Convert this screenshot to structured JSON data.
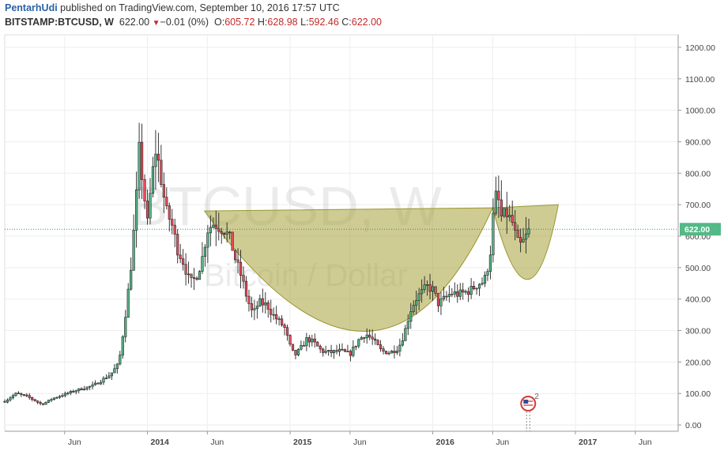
{
  "header": {
    "author": "PentarhUdi",
    "published_text": "published on TradingView.com, September 10, 2016 17:57 UTC",
    "symbol": "BITSTAMP:BTCUSD, W",
    "last": "622.00",
    "change_arrow": "▼",
    "change": "−0.01 (0%)",
    "o_label": "O:",
    "o_value": "605.72",
    "h_label": "H:",
    "h_value": "628.98",
    "l_label": "L:",
    "l_value": "592.46",
    "c_label": "C:",
    "c_value": "622.00"
  },
  "watermark": {
    "title": "BTCUSD, W",
    "subtitle": "Bitcoin / Dollar"
  },
  "price_tag": "622.00",
  "event_badge": "2",
  "colors": {
    "up": "#53b987",
    "down": "#eb4d5c",
    "pattern_fill": "#a7a23a",
    "price_line": "#2a8f8f",
    "grid": "#eeeeee",
    "axis": "#999999",
    "price_tag_bg": "#53b987"
  },
  "chart_data": {
    "type": "candlestick",
    "title": "",
    "ylim": [
      -20,
      1240
    ],
    "y_ticks": [
      "0.00",
      "100.00",
      "200.00",
      "300.00",
      "400.00",
      "500.00",
      "600.00",
      "700.00",
      "800.00",
      "900.00",
      "1000.00",
      "1100.00",
      "1200.00"
    ],
    "x_ticks": [
      {
        "t": 2013.42,
        "label": "Jun"
      },
      {
        "t": 2014.0,
        "label": "2014"
      },
      {
        "t": 2014.42,
        "label": "Jun"
      },
      {
        "t": 2015.0,
        "label": "2015"
      },
      {
        "t": 2015.42,
        "label": "Jun"
      },
      {
        "t": 2016.0,
        "label": "2016"
      },
      {
        "t": 2016.42,
        "label": "Jun"
      },
      {
        "t": 2017.0,
        "label": "2017"
      },
      {
        "t": 2017.42,
        "label": "Jun"
      }
    ],
    "xlim": [
      2013.0,
      2017.72
    ],
    "last_price": 622,
    "keypoints": [
      {
        "t": 2013.0,
        "p": 75
      },
      {
        "t": 2013.08,
        "p": 100
      },
      {
        "t": 2013.16,
        "p": 90
      },
      {
        "t": 2013.26,
        "p": 65
      },
      {
        "t": 2013.34,
        "p": 85
      },
      {
        "t": 2013.5,
        "p": 110
      },
      {
        "t": 2013.62,
        "p": 125
      },
      {
        "t": 2013.74,
        "p": 160
      },
      {
        "t": 2013.8,
        "p": 195
      },
      {
        "t": 2013.84,
        "p": 330
      },
      {
        "t": 2013.88,
        "p": 480
      },
      {
        "t": 2013.92,
        "p": 700
      },
      {
        "t": 2013.94,
        "p": 880
      },
      {
        "t": 2013.97,
        "p": 760
      },
      {
        "t": 2014.0,
        "p": 640
      },
      {
        "t": 2014.03,
        "p": 780
      },
      {
        "t": 2014.06,
        "p": 880
      },
      {
        "t": 2014.1,
        "p": 770
      },
      {
        "t": 2014.13,
        "p": 680
      },
      {
        "t": 2014.17,
        "p": 640
      },
      {
        "t": 2014.21,
        "p": 560
      },
      {
        "t": 2014.25,
        "p": 520
      },
      {
        "t": 2014.3,
        "p": 450
      },
      {
        "t": 2014.34,
        "p": 470
      },
      {
        "t": 2014.38,
        "p": 520
      },
      {
        "t": 2014.42,
        "p": 620
      },
      {
        "t": 2014.46,
        "p": 640
      },
      {
        "t": 2014.5,
        "p": 630
      },
      {
        "t": 2014.54,
        "p": 620
      },
      {
        "t": 2014.58,
        "p": 590
      },
      {
        "t": 2014.62,
        "p": 520
      },
      {
        "t": 2014.66,
        "p": 470
      },
      {
        "t": 2014.7,
        "p": 400
      },
      {
        "t": 2014.74,
        "p": 350
      },
      {
        "t": 2014.78,
        "p": 390
      },
      {
        "t": 2014.84,
        "p": 380
      },
      {
        "t": 2014.88,
        "p": 350
      },
      {
        "t": 2014.92,
        "p": 330
      },
      {
        "t": 2014.96,
        "p": 310
      },
      {
        "t": 2015.0,
        "p": 250
      },
      {
        "t": 2015.03,
        "p": 220
      },
      {
        "t": 2015.07,
        "p": 240
      },
      {
        "t": 2015.12,
        "p": 275
      },
      {
        "t": 2015.17,
        "p": 260
      },
      {
        "t": 2015.22,
        "p": 235
      },
      {
        "t": 2015.28,
        "p": 230
      },
      {
        "t": 2015.35,
        "p": 235
      },
      {
        "t": 2015.42,
        "p": 225
      },
      {
        "t": 2015.48,
        "p": 270
      },
      {
        "t": 2015.53,
        "p": 290
      },
      {
        "t": 2015.58,
        "p": 270
      },
      {
        "t": 2015.64,
        "p": 235
      },
      {
        "t": 2015.7,
        "p": 230
      },
      {
        "t": 2015.76,
        "p": 245
      },
      {
        "t": 2015.8,
        "p": 290
      },
      {
        "t": 2015.84,
        "p": 360
      },
      {
        "t": 2015.88,
        "p": 400
      },
      {
        "t": 2015.92,
        "p": 420
      },
      {
        "t": 2015.96,
        "p": 440
      },
      {
        "t": 2016.0,
        "p": 430
      },
      {
        "t": 2016.04,
        "p": 385
      },
      {
        "t": 2016.08,
        "p": 400
      },
      {
        "t": 2016.13,
        "p": 420
      },
      {
        "t": 2016.18,
        "p": 415
      },
      {
        "t": 2016.22,
        "p": 420
      },
      {
        "t": 2016.27,
        "p": 430
      },
      {
        "t": 2016.32,
        "p": 450
      },
      {
        "t": 2016.36,
        "p": 455
      },
      {
        "t": 2016.4,
        "p": 530
      },
      {
        "t": 2016.43,
        "p": 700
      },
      {
        "t": 2016.45,
        "p": 740
      },
      {
        "t": 2016.48,
        "p": 660
      },
      {
        "t": 2016.52,
        "p": 670
      },
      {
        "t": 2016.56,
        "p": 640
      },
      {
        "t": 2016.59,
        "p": 580
      },
      {
        "t": 2016.62,
        "p": 570
      },
      {
        "t": 2016.65,
        "p": 595
      },
      {
        "t": 2016.68,
        "p": 622
      }
    ],
    "pattern": {
      "rim_left": {
        "t": 2014.4,
        "p": 680
      },
      "rim_right": {
        "t": 2016.42,
        "p": 690
      },
      "cup_bottom": {
        "t": 2015.42,
        "p": 160
      },
      "handle_left": {
        "t": 2016.42,
        "p": 690
      },
      "handle_right": {
        "t": 2016.88,
        "p": 700
      },
      "handle_bottom": {
        "t": 2016.63,
        "p": 470
      }
    },
    "event": {
      "t": 2016.68,
      "label": "2"
    }
  }
}
